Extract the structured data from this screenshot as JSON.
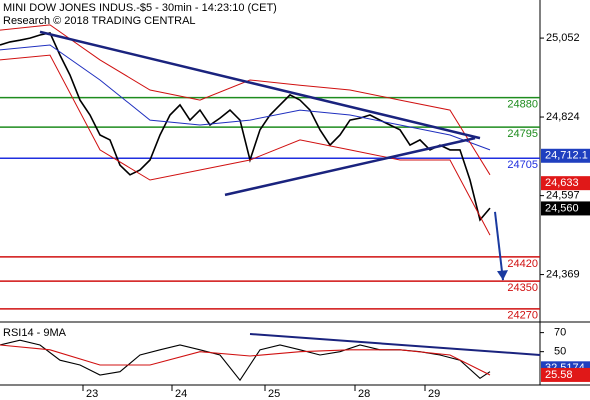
{
  "chart_data": {
    "type": "line",
    "title": "MINI DOW JONES INDUS.-$5 - 30min - 14:23:10 (CET)",
    "subtitle": "Research © 2018 TRADING CENTRAL",
    "xlim": [
      0,
      54
    ],
    "xticks": [
      {
        "value": 8.3,
        "label": "23"
      },
      {
        "value": 17.2,
        "label": "24"
      },
      {
        "value": 26.5,
        "label": "25"
      },
      {
        "value": 35.5,
        "label": "28"
      },
      {
        "value": 42.5,
        "label": "29"
      }
    ],
    "ylim": [
      24232,
      25162
    ],
    "yticks": [
      {
        "value": 25052,
        "label": "25,052"
      },
      {
        "value": 24824,
        "label": "24,824"
      },
      {
        "value": 24597,
        "label": "24,597"
      },
      {
        "value": 24369,
        "label": "24,369"
      }
    ],
    "series": [
      {
        "color": "#000000",
        "x": [
          0,
          1,
          2,
          3,
          4,
          5,
          6,
          7,
          8,
          9,
          10,
          11,
          12,
          13,
          14,
          15,
          16,
          17,
          18,
          19,
          20,
          21,
          22,
          23,
          24,
          25,
          26,
          27,
          28,
          29,
          30,
          31,
          32,
          33,
          34,
          35,
          36,
          37,
          38,
          39,
          40,
          41,
          42,
          43,
          44,
          45,
          46,
          47,
          48,
          49
        ],
        "values": [
          25032,
          25041,
          25046,
          25052,
          25061,
          25067,
          25003,
          24945,
          24873,
          24830,
          24772,
          24758,
          24685,
          24657,
          24671,
          24700,
          24772,
          24830,
          24859,
          24815,
          24844,
          24801,
          24821,
          24844,
          24815,
          24700,
          24787,
          24830,
          24859,
          24888,
          24873,
          24844,
          24787,
          24743,
          24772,
          24815,
          24821,
          24830,
          24815,
          24801,
          24787,
          24743,
          24758,
          24729,
          24743,
          24729,
          24729,
          24642,
          24527,
          24561
        ]
      },
      {
        "color": "#1f2fbf",
        "x": [
          0,
          5,
          10,
          15,
          20,
          25,
          30,
          35,
          40,
          45,
          49
        ],
        "values": [
          25018,
          25032,
          24931,
          24815,
          24801,
          24815,
          24844,
          24830,
          24801,
          24772,
          24729
        ]
      },
      {
        "color": "#d01010",
        "x": [
          0,
          5,
          10,
          15,
          20,
          25,
          30,
          35,
          40,
          45,
          49
        ],
        "values": [
          25075,
          25090,
          24989,
          24902,
          24873,
          24931,
          24916,
          24902,
          24873,
          24844,
          24657
        ]
      },
      {
        "color": "#d01010",
        "x": [
          0,
          5,
          10,
          15,
          20,
          25,
          30,
          35,
          40,
          45,
          49
        ],
        "values": [
          24989,
          25003,
          24729,
          24642,
          24671,
          24700,
          24758,
          24729,
          24700,
          24700,
          24483
        ]
      }
    ],
    "levels": [
      {
        "value": 24880,
        "color": "#1e8c1e"
      },
      {
        "value": 24795,
        "color": "#1e8c1e"
      },
      {
        "value": 24705,
        "color": "#1f2fdf"
      },
      {
        "value": 24420,
        "color": "#d01010"
      },
      {
        "value": 24350,
        "color": "#d01010"
      },
      {
        "value": 24270,
        "color": "#d01010"
      }
    ],
    "trendlines": [
      {
        "x": [
          4,
          48
        ],
        "values": [
          25070,
          24763
        ]
      },
      {
        "x": [
          22.5,
          47.5
        ],
        "values": [
          24599,
          24763
        ]
      }
    ],
    "arrow": {
      "x": [
        49.5,
        50.3
      ],
      "values": [
        24550,
        24353
      ]
    },
    "tags": [
      {
        "value": 24712.1,
        "label": "24,712.1",
        "color": "#1f3fbf"
      },
      {
        "value": 24633,
        "label": "24,633",
        "color": "#e01818"
      },
      {
        "value": 24560,
        "label": "24,560",
        "color": "#000000"
      }
    ],
    "rsi": {
      "label": "RSI14 - 9MA",
      "ylim": [
        15,
        78
      ],
      "yticks": [
        70,
        50
      ],
      "series": [
        {
          "color": "#000000",
          "x": [
            0,
            2,
            4,
            6,
            8,
            10,
            12,
            14,
            16,
            18,
            20,
            22,
            24,
            26,
            28,
            30,
            32,
            34,
            36,
            38,
            40,
            42,
            44,
            46,
            48,
            49
          ],
          "values": [
            57,
            62,
            57,
            41,
            36,
            25.5,
            29,
            46.5,
            52,
            57,
            52,
            46.5,
            20,
            52,
            57,
            52,
            46.5,
            50,
            57,
            52,
            52,
            50,
            46.5,
            41,
            22,
            29
          ]
        },
        {
          "color": "#d01010",
          "x": [
            0,
            5,
            10,
            15,
            20,
            25,
            30,
            35,
            40,
            45,
            49
          ],
          "values": [
            57,
            52,
            36,
            36,
            50,
            45.5,
            50,
            52,
            52,
            46.5,
            25.5
          ]
        }
      ],
      "trendline": {
        "x": [
          25,
          54
        ],
        "values": [
          68.5,
          46.5
        ]
      },
      "tags": [
        {
          "value": 32.5174,
          "label": "32.5174",
          "color": "#1f3fbf"
        },
        {
          "value": 25.58,
          "label": "25.58",
          "color": "#e01818"
        }
      ]
    }
  }
}
